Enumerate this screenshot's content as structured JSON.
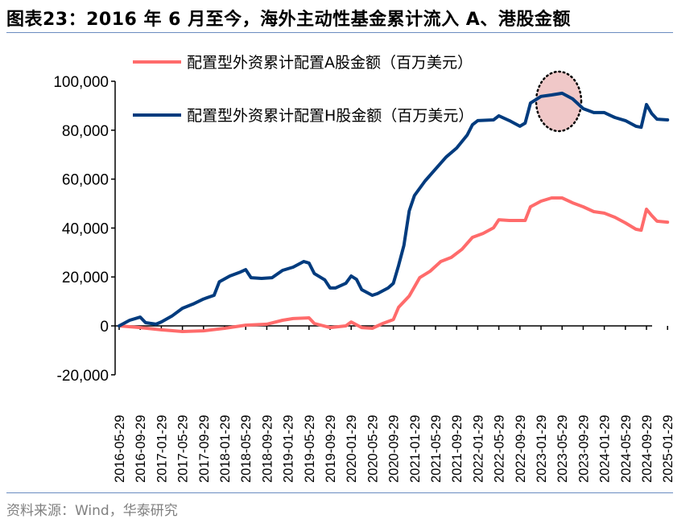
{
  "title": "图表23：2016 年 6 月至今，海外主动性基金累计流入 A、港股金额",
  "source": "资料来源：Wind，华泰研究",
  "colors": {
    "series_a": "#ff6b6b",
    "series_h": "#003b7e",
    "highlight_fill": "#f0c8c8",
    "rule": "#6a8cc0"
  },
  "chart_data": {
    "type": "line",
    "ylim": [
      -20000,
      100000
    ],
    "yticks": [
      -20000,
      0,
      20000,
      40000,
      60000,
      80000,
      100000
    ],
    "ytick_labels": [
      "-20,000",
      "0",
      "20,000",
      "40,000",
      "60,000",
      "80,000",
      "100,000"
    ],
    "xtick_labels": [
      "2016-05-29",
      "2016-09-29",
      "2017-01-29",
      "2017-05-29",
      "2017-09-29",
      "2018-01-29",
      "2018-05-29",
      "2018-09-29",
      "2019-01-29",
      "2019-05-29",
      "2019-09-29",
      "2020-01-29",
      "2020-05-29",
      "2020-09-29",
      "2021-01-29",
      "2021-05-29",
      "2021-09-29",
      "2022-01-29",
      "2022-05-29",
      "2022-09-29",
      "2023-01-29",
      "2023-05-29",
      "2023-09-29",
      "2024-01-29",
      "2024-05-29",
      "2024-09-29",
      "2025-01-29"
    ],
    "legend_placement": "top-left",
    "grid": false,
    "annotation": "dotted ellipse highlighting the 2023-01 to 2023-10 peak of the H-share series",
    "series": [
      {
        "name": "配置型外资累计配置A股金额（百万美元）",
        "color": "#ff6b6b",
        "points": [
          [
            "2016-05",
            0
          ],
          [
            "2016-09",
            -700
          ],
          [
            "2017-01",
            -1600
          ],
          [
            "2017-05",
            -2300
          ],
          [
            "2017-09",
            -2000
          ],
          [
            "2018-01",
            -1000
          ],
          [
            "2018-05",
            300
          ],
          [
            "2018-09",
            700
          ],
          [
            "2018-12",
            2300
          ],
          [
            "2019-02",
            3000
          ],
          [
            "2019-05",
            3300
          ],
          [
            "2019-06",
            1000
          ],
          [
            "2019-09",
            -700
          ],
          [
            "2019-12",
            0
          ],
          [
            "2020-01",
            1600
          ],
          [
            "2020-03",
            -700
          ],
          [
            "2020-05",
            -1000
          ],
          [
            "2020-07",
            1000
          ],
          [
            "2020-09",
            2600
          ],
          [
            "2020-10",
            7600
          ],
          [
            "2020-12",
            12200
          ],
          [
            "2021-02",
            19700
          ],
          [
            "2021-04",
            22400
          ],
          [
            "2021-06",
            26300
          ],
          [
            "2021-08",
            28000
          ],
          [
            "2021-10",
            31300
          ],
          [
            "2021-12",
            36200
          ],
          [
            "2022-02",
            37800
          ],
          [
            "2022-04",
            40100
          ],
          [
            "2022-05",
            43400
          ],
          [
            "2022-07",
            43100
          ],
          [
            "2022-10",
            43100
          ],
          [
            "2022-11",
            48700
          ],
          [
            "2023-01",
            51000
          ],
          [
            "2023-03",
            52300
          ],
          [
            "2023-05",
            52300
          ],
          [
            "2023-07",
            50300
          ],
          [
            "2023-09",
            48700
          ],
          [
            "2023-11",
            46700
          ],
          [
            "2024-01",
            46100
          ],
          [
            "2024-03",
            44400
          ],
          [
            "2024-05",
            42100
          ],
          [
            "2024-07",
            39500
          ],
          [
            "2024-08",
            39100
          ],
          [
            "2024-09",
            47700
          ],
          [
            "2024-10",
            45100
          ],
          [
            "2024-11",
            42800
          ],
          [
            "2025-01",
            42400
          ]
        ]
      },
      {
        "name": "配置型外资累计配置H股金额（百万美元）",
        "color": "#003b7e",
        "points": [
          [
            "2016-05",
            0
          ],
          [
            "2016-07",
            2300
          ],
          [
            "2016-09",
            3600
          ],
          [
            "2016-10",
            1300
          ],
          [
            "2016-12",
            700
          ],
          [
            "2017-01",
            1600
          ],
          [
            "2017-03",
            4000
          ],
          [
            "2017-05",
            7200
          ],
          [
            "2017-07",
            8900
          ],
          [
            "2017-09",
            11000
          ],
          [
            "2017-11",
            12500
          ],
          [
            "2017-12",
            18000
          ],
          [
            "2018-02",
            20400
          ],
          [
            "2018-04",
            22000
          ],
          [
            "2018-05",
            23000
          ],
          [
            "2018-06",
            19700
          ],
          [
            "2018-08",
            19400
          ],
          [
            "2018-10",
            19700
          ],
          [
            "2018-12",
            22700
          ],
          [
            "2019-02",
            24000
          ],
          [
            "2019-04",
            26300
          ],
          [
            "2019-05",
            25700
          ],
          [
            "2019-06",
            21400
          ],
          [
            "2019-08",
            18800
          ],
          [
            "2019-09",
            15500
          ],
          [
            "2019-10",
            15500
          ],
          [
            "2019-12",
            17400
          ],
          [
            "2020-01",
            20400
          ],
          [
            "2020-02",
            19000
          ],
          [
            "2020-03",
            14800
          ],
          [
            "2020-05",
            12500
          ],
          [
            "2020-06",
            13200
          ],
          [
            "2020-08",
            15500
          ],
          [
            "2020-09",
            17400
          ],
          [
            "2020-10",
            24700
          ],
          [
            "2020-11",
            32900
          ],
          [
            "2020-12",
            47000
          ],
          [
            "2021-01",
            53300
          ],
          [
            "2021-03",
            59200
          ],
          [
            "2021-05",
            64100
          ],
          [
            "2021-07",
            69000
          ],
          [
            "2021-09",
            72700
          ],
          [
            "2021-11",
            78000
          ],
          [
            "2021-12",
            82200
          ],
          [
            "2022-01",
            83900
          ],
          [
            "2022-04",
            84200
          ],
          [
            "2022-05",
            85900
          ],
          [
            "2022-07",
            83900
          ],
          [
            "2022-09",
            81600
          ],
          [
            "2022-10",
            82900
          ],
          [
            "2022-11",
            91100
          ],
          [
            "2023-01",
            93800
          ],
          [
            "2023-03",
            94400
          ],
          [
            "2023-05",
            95100
          ],
          [
            "2023-07",
            92800
          ],
          [
            "2023-09",
            88800
          ],
          [
            "2023-11",
            87200
          ],
          [
            "2024-01",
            87200
          ],
          [
            "2024-03",
            85200
          ],
          [
            "2024-05",
            83900
          ],
          [
            "2024-07",
            81600
          ],
          [
            "2024-08",
            81200
          ],
          [
            "2024-09",
            90500
          ],
          [
            "2024-10",
            86800
          ],
          [
            "2024-11",
            84500
          ],
          [
            "2025-01",
            84200
          ]
        ]
      }
    ]
  }
}
